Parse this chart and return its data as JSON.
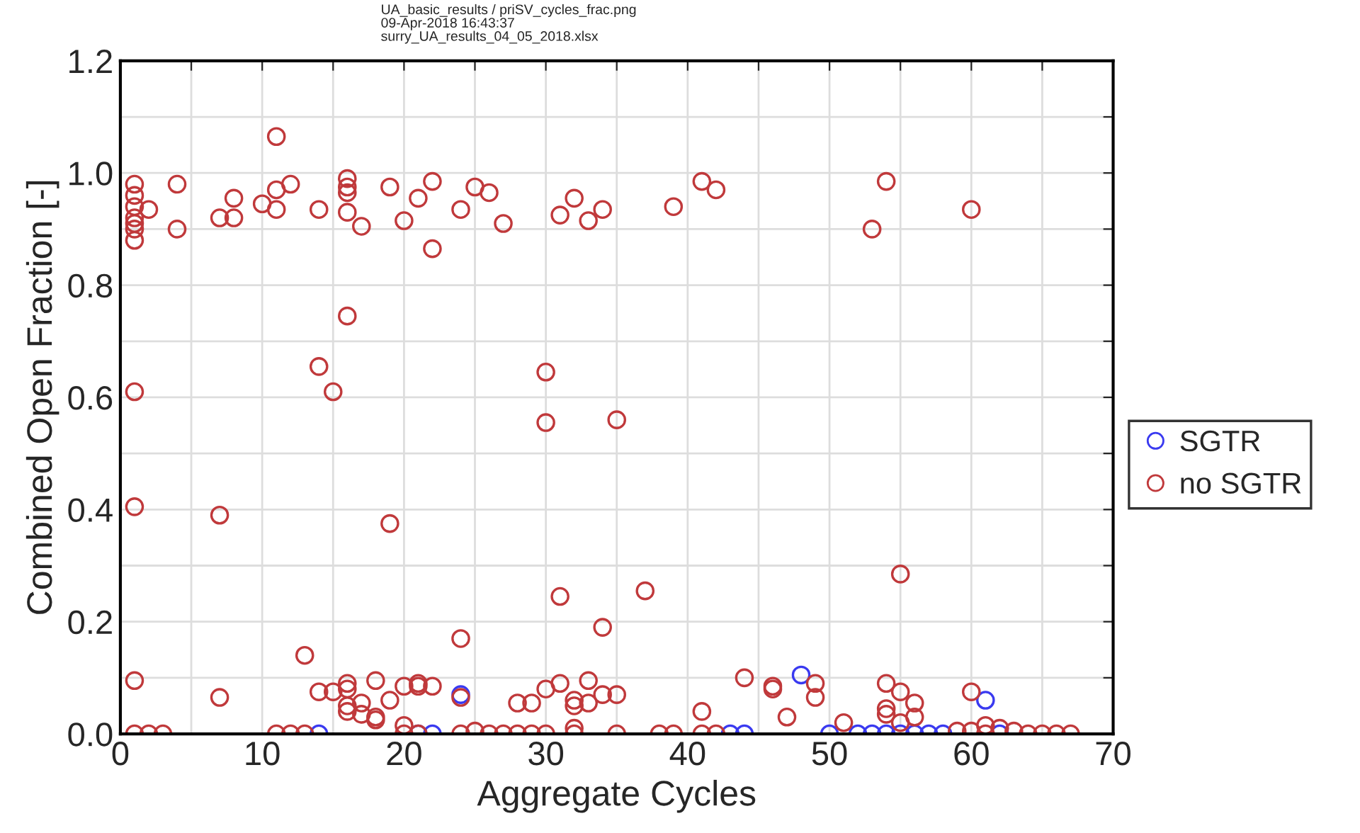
{
  "chart_data": {
    "type": "scatter",
    "xlabel": "Aggregate Cycles",
    "ylabel": "Combined Open Fraction [-]",
    "annotations": [
      "UA_basic_results / priSV_cycles_frac.png",
      "09-Apr-2018 16:43:37",
      "surry_UA_results_04_05_2018.xlsx"
    ],
    "xlim": [
      0,
      70
    ],
    "ylim": [
      0,
      1.2
    ],
    "xticks": [
      0,
      {
        "value": 5,
        "label": null
      },
      10,
      {
        "value": 15,
        "label": null
      },
      20,
      {
        "value": 25,
        "label": null
      },
      30,
      {
        "value": 35,
        "label": null
      },
      40,
      {
        "value": 45,
        "label": null
      },
      50,
      {
        "value": 55,
        "label": null
      },
      60,
      {
        "value": 65,
        "label": null
      },
      70
    ],
    "yticks": [
      {
        "value": 0,
        "label": "0.0"
      },
      {
        "value": 0.1,
        "label": null
      },
      0.2,
      {
        "value": 0.3,
        "label": null
      },
      0.4,
      {
        "value": 0.5,
        "label": null
      },
      0.6,
      {
        "value": 0.7,
        "label": null
      },
      0.8,
      {
        "value": 0.9,
        "label": null
      },
      {
        "value": 1.0,
        "label": "1.0"
      },
      {
        "value": 1.1,
        "label": null
      },
      1.2
    ],
    "grid": true,
    "legend": "right",
    "marker": "circle",
    "series": [
      {
        "name": "SGTR",
        "color": "#3a3af0",
        "x": [
          14,
          21,
          22,
          24,
          43,
          44,
          48,
          50,
          52,
          53,
          54,
          55,
          56,
          57,
          58,
          61,
          62
        ],
        "values": [
          0,
          0,
          0,
          0.07,
          0,
          0,
          0.105,
          0,
          0,
          0,
          0,
          0,
          0,
          0,
          0,
          0.06,
          0
        ]
      },
      {
        "name": "no SGTR",
        "color": "#c0393b",
        "x": [
          1,
          1,
          1,
          1,
          1,
          1,
          1,
          1,
          1,
          1,
          1,
          2,
          2,
          3,
          4,
          4,
          7,
          7,
          7,
          8,
          8,
          10,
          11,
          11,
          11,
          11,
          12,
          12,
          13,
          13,
          14,
          14,
          14,
          15,
          15,
          16,
          16,
          16,
          16,
          16,
          16,
          16,
          16,
          16,
          17,
          17,
          17,
          18,
          18,
          18,
          19,
          19,
          19,
          20,
          20,
          20,
          20,
          21,
          21,
          21,
          21,
          22,
          22,
          22,
          24,
          24,
          24,
          24,
          25,
          25,
          26,
          26,
          27,
          27,
          28,
          28,
          29,
          29,
          30,
          30,
          30,
          30,
          31,
          31,
          31,
          32,
          32,
          32,
          32,
          32,
          33,
          33,
          33,
          34,
          34,
          34,
          35,
          35,
          35,
          37,
          38,
          39,
          39,
          41,
          41,
          41,
          42,
          42,
          44,
          46,
          46,
          47,
          49,
          49,
          51,
          53,
          54,
          54,
          54,
          54,
          55,
          55,
          55,
          56,
          56,
          59,
          60,
          60,
          60,
          61,
          61,
          62,
          63,
          64,
          65,
          66,
          67
        ],
        "values": [
          0.98,
          0.96,
          0.94,
          0.92,
          0.91,
          0.9,
          0.88,
          0.61,
          0.405,
          0.095,
          0,
          0.935,
          0,
          0,
          0.98,
          0.9,
          0.92,
          0.39,
          0.065,
          0.955,
          0.92,
          0.945,
          1.065,
          0.97,
          0.935,
          0,
          0.98,
          0,
          0.14,
          0,
          0.935,
          0.655,
          0.075,
          0.61,
          0.075,
          0.99,
          0.975,
          0.965,
          0.93,
          0.745,
          0.09,
          0.08,
          0.05,
          0.04,
          0.905,
          0.055,
          0.035,
          0.095,
          0.03,
          0.025,
          0.975,
          0.375,
          0.06,
          0.915,
          0.085,
          0.015,
          0,
          0.955,
          0.09,
          0.085,
          0,
          0.985,
          0.865,
          0.085,
          0.935,
          0.17,
          0.065,
          0,
          0.975,
          0.005,
          0.965,
          0,
          0.91,
          0,
          0.055,
          0,
          0.055,
          0,
          0.645,
          0.555,
          0.08,
          0,
          0.925,
          0.245,
          0.09,
          0.955,
          0.06,
          0.05,
          0.01,
          0,
          0.915,
          0.095,
          0.055,
          0.935,
          0.19,
          0.07,
          0.56,
          0.07,
          0,
          0.255,
          0,
          0.94,
          0,
          0.985,
          0.04,
          0,
          0.97,
          0,
          0.1,
          0.085,
          0.08,
          0.03,
          0.09,
          0.065,
          0.02,
          0.9,
          0.985,
          0.09,
          0.045,
          0.035,
          0.285,
          0.075,
          0.02,
          0.055,
          0.03,
          0.005,
          0.935,
          0.075,
          0.005,
          0.015,
          0,
          0.01,
          0.005,
          0,
          0,
          0,
          0
        ]
      }
    ]
  }
}
